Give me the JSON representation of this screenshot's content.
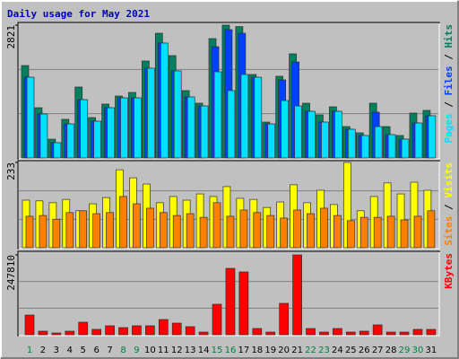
{
  "chart_data": [
    {
      "type": "bar",
      "title": "Daily usage for May 2021",
      "categories": [
        "1",
        "2",
        "3",
        "4",
        "5",
        "6",
        "7",
        "8",
        "9",
        "10",
        "11",
        "12",
        "13",
        "14",
        "15",
        "16",
        "17",
        "18",
        "19",
        "20",
        "21",
        "22",
        "23",
        "24",
        "25",
        "26",
        "27",
        "28",
        "29",
        "30",
        "31"
      ],
      "category_colors": [
        "#008040",
        "#000000",
        "#000000",
        "#000000",
        "#000000",
        "#000000",
        "#000000",
        "#008040",
        "#008040",
        "#000000",
        "#000000",
        "#000000",
        "#000000",
        "#000000",
        "#008040",
        "#008040",
        "#000000",
        "#000000",
        "#000000",
        "#000000",
        "#000000",
        "#008040",
        "#008040",
        "#000000",
        "#000000",
        "#000000",
        "#000000",
        "#000000",
        "#008040",
        "#008040",
        "#000000"
      ],
      "series": [
        {
          "name": "Hits",
          "color": "#00805c",
          "values": [
            1963,
            1067,
            400,
            820,
            1506,
            858,
            1144,
            1315,
            1391,
            2059,
            2649,
            2173,
            1430,
            1163,
            2535,
            2821,
            2790,
            1773,
            762,
            1735,
            2211,
            1163,
            915,
            1086,
            667,
            534,
            1163,
            667,
            477,
            953,
            1010
          ]
        },
        {
          "name": "Files",
          "color": "#0040ff",
          "values": [
            1715,
            934,
            324,
            724,
            1239,
            781,
            1067,
            1277,
            1277,
            1906,
            2440,
            1849,
            1296,
            1105,
            2363,
            2726,
            2649,
            1715,
            724,
            1658,
            2039,
            991,
            762,
            991,
            610,
            477,
            972,
            496,
            400,
            743,
            896
          ]
        },
        {
          "name": "Pages",
          "color": "#00e0ff",
          "values": [
            1715,
            934,
            324,
            724,
            1239,
            781,
            1067,
            1277,
            1277,
            1906,
            2440,
            1849,
            1296,
            1105,
            1830,
            1430,
            1773,
            1715,
            724,
            1220,
            1105,
            991,
            762,
            991,
            610,
            477,
            667,
            496,
            400,
            743,
            896
          ]
        }
      ],
      "ylim": [
        0,
        2821
      ],
      "yticks": [
        2821
      ],
      "grid_divisions": 3,
      "legend_separator": " / "
    },
    {
      "type": "bar",
      "series": [
        {
          "name": "Visits",
          "color": "#ffff00",
          "values": [
            130,
            128,
            123,
            132,
            101,
            120,
            137,
            213,
            191,
            174,
            123,
            140,
            130,
            147,
            140,
            167,
            135,
            132,
            110,
            125,
            172,
            123,
            157,
            118,
            233,
            101,
            140,
            177,
            147,
            179,
            157
          ]
        },
        {
          "name": "Sites",
          "color": "#ff8000",
          "values": [
            86,
            88,
            78,
            96,
            101,
            93,
            96,
            140,
            120,
            108,
            96,
            88,
            93,
            83,
            123,
            86,
            103,
            96,
            88,
            81,
            103,
            93,
            108,
            88,
            74,
            83,
            83,
            86,
            76,
            86,
            101
          ]
        }
      ],
      "ylim": [
        0,
        233
      ],
      "yticks": [
        233
      ],
      "grid_divisions": 3,
      "legend_separator": " / "
    },
    {
      "type": "bar",
      "series": [
        {
          "name": "KBytes",
          "color": "#ff0000",
          "values": [
            61248,
            11136,
            5568,
            11136,
            38976,
            16704,
            27840,
            22272,
            27840,
            27840,
            47328,
            36192,
            25056,
            8352,
            94656,
            206016,
            194880,
            19488,
            8352,
            97440,
            247810,
            19488,
            8352,
            19488,
            8352,
            11136,
            30624,
            8352,
            8352,
            16704,
            16704
          ]
        }
      ],
      "ylim": [
        0,
        247810
      ],
      "yticks": [
        247810
      ],
      "grid_divisions": 3
    }
  ]
}
